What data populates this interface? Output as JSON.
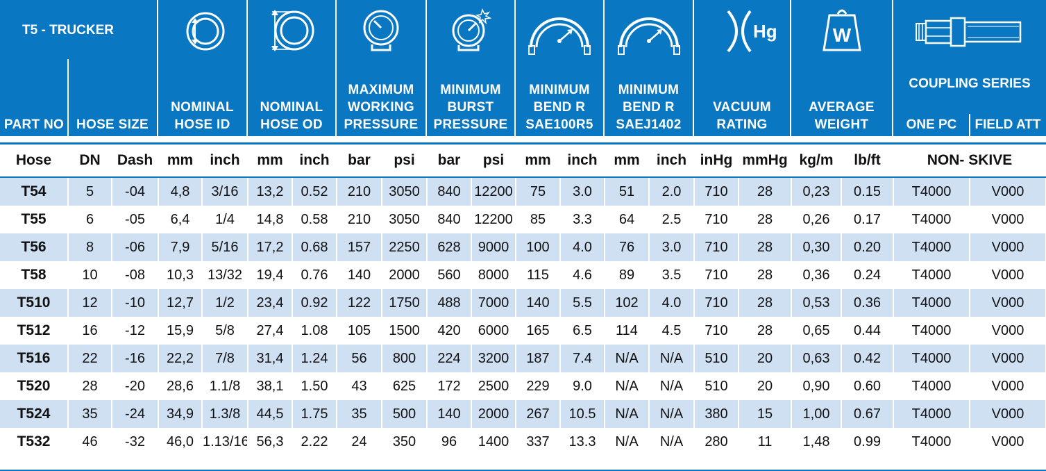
{
  "header": {
    "title": "T5 - TRUCKER",
    "columns": [
      {
        "label": "PART NO"
      },
      {
        "label": "HOSE SIZE"
      },
      {
        "label": "NOMINAL\nHOSE ID"
      },
      {
        "label": "NOMINAL\nHOSE OD"
      },
      {
        "label": "MAXIMUM\nWORKING\nPRESSURE"
      },
      {
        "label": "MINIMUM\nBURST\nPRESSURE"
      },
      {
        "label": "MINIMUM\nBEND R\nSAE100R5"
      },
      {
        "label": "MINIMUM\nBEND R\nSAEJ1402"
      },
      {
        "label": "VACUUM\nRATING"
      },
      {
        "label": "AVERAGE\nWEIGHT"
      },
      {
        "label": "COUPLING SERIES"
      }
    ],
    "coupling_sub": {
      "one_pc": "ONE PC",
      "field_att": "FIELD ATT"
    },
    "icons": {
      "hose_id": "hose-inner-diameter-icon",
      "hose_od": "hose-outer-diameter-icon",
      "working_pressure": "pressure-gauge-icon",
      "burst_pressure": "burst-gauge-icon",
      "bend_r5": "bend-radius-icon",
      "bend_j1402": "bend-radius-icon",
      "vacuum": "vacuum-hg-icon",
      "weight": "weight-icon",
      "coupling": "coupling-fitting-icon"
    },
    "vacuum_symbol": "Hg",
    "weight_symbol": "W"
  },
  "units": [
    "Hose",
    "DN",
    "Dash",
    "mm",
    "inch",
    "mm",
    "inch",
    "bar",
    "psi",
    "bar",
    "psi",
    "mm",
    "inch",
    "mm",
    "inch",
    "inHg",
    "mmHg",
    "kg/m",
    "lb/ft",
    "NON- SKIVE"
  ],
  "rows": [
    [
      "T54",
      "5",
      "-04",
      "4,8",
      "3/16",
      "13,2",
      "0.52",
      "210",
      "3050",
      "840",
      "12200",
      "75",
      "3.0",
      "51",
      "2.0",
      "710",
      "28",
      "0,23",
      "0.15",
      "T4000",
      "V000"
    ],
    [
      "T55",
      "6",
      "-05",
      "6,4",
      "1/4",
      "14,8",
      "0.58",
      "210",
      "3050",
      "840",
      "12200",
      "85",
      "3.3",
      "64",
      "2.5",
      "710",
      "28",
      "0,26",
      "0.17",
      "T4000",
      "V000"
    ],
    [
      "T56",
      "8",
      "-06",
      "7,9",
      "5/16",
      "17,2",
      "0.68",
      "157",
      "2250",
      "628",
      "9000",
      "100",
      "4.0",
      "76",
      "3.0",
      "710",
      "28",
      "0,30",
      "0.20",
      "T4000",
      "V000"
    ],
    [
      "T58",
      "10",
      "-08",
      "10,3",
      "13/32",
      "19,4",
      "0.76",
      "140",
      "2000",
      "560",
      "8000",
      "115",
      "4.6",
      "89",
      "3.5",
      "710",
      "28",
      "0,36",
      "0.24",
      "T4000",
      "V000"
    ],
    [
      "T510",
      "12",
      "-10",
      "12,7",
      "1/2",
      "23,4",
      "0.92",
      "122",
      "1750",
      "488",
      "7000",
      "140",
      "5.5",
      "102",
      "4.0",
      "710",
      "28",
      "0,53",
      "0.36",
      "T4000",
      "V000"
    ],
    [
      "T512",
      "16",
      "-12",
      "15,9",
      "5/8",
      "27,4",
      "1.08",
      "105",
      "1500",
      "420",
      "6000",
      "165",
      "6.5",
      "114",
      "4.5",
      "710",
      "28",
      "0,65",
      "0.44",
      "T4000",
      "V000"
    ],
    [
      "T516",
      "22",
      "-16",
      "22,2",
      "7/8",
      "31,4",
      "1.24",
      "56",
      "800",
      "224",
      "3200",
      "187",
      "7.4",
      "N/A",
      "N/A",
      "510",
      "20",
      "0,63",
      "0.42",
      "T4000",
      "V000"
    ],
    [
      "T520",
      "28",
      "-20",
      "28,6",
      "1.1/8",
      "38,1",
      "1.50",
      "43",
      "625",
      "172",
      "2500",
      "229",
      "9.0",
      "N/A",
      "N/A",
      "510",
      "20",
      "0,90",
      "0.60",
      "T4000",
      "V000"
    ],
    [
      "T524",
      "35",
      "-24",
      "34,9",
      "1.3/8",
      "44,5",
      "1.75",
      "35",
      "500",
      "140",
      "2000",
      "267",
      "10.5",
      "N/A",
      "N/A",
      "380",
      "15",
      "1,00",
      "0.67",
      "T4000",
      "V000"
    ],
    [
      "T532",
      "46",
      "-32",
      "46,0",
      "1.13/16",
      "56,3",
      "2.22",
      "24",
      "350",
      "96",
      "1400",
      "337",
      "13.3",
      "N/A",
      "N/A",
      "280",
      "11",
      "1,48",
      "0.99",
      "T4000",
      "V000"
    ]
  ],
  "colors": {
    "header_blue": "#0a77c2",
    "row_tint": "#cfe0f3"
  }
}
